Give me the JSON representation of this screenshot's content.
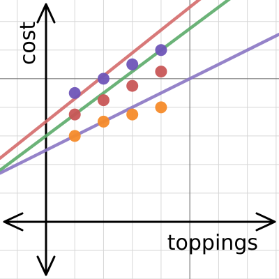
{
  "chart_data": {
    "type": "scatter",
    "xlabel": "toppings",
    "ylabel": "cost",
    "xlim": [
      -1.6,
      8.1
    ],
    "ylim": [
      -2.0,
      7.75
    ],
    "grid": true,
    "lines": [
      {
        "color": "#d46b6b",
        "intercept": 3.5,
        "slope": 0.8
      },
      {
        "color": "#5bab6a",
        "intercept": 3.0,
        "slope": 0.75
      },
      {
        "color": "#8a76c4",
        "intercept": 2.5,
        "slope": 0.5
      }
    ],
    "series": [
      {
        "color": "#6f55b8",
        "points": [
          [
            1,
            4.5
          ],
          [
            2,
            5.0
          ],
          [
            3,
            5.5
          ],
          [
            4,
            6.0
          ]
        ]
      },
      {
        "color": "#c85656",
        "points": [
          [
            1,
            3.75
          ],
          [
            2,
            4.25
          ],
          [
            3,
            4.75
          ],
          [
            4,
            5.25
          ]
        ]
      },
      {
        "color": "#f58b2a",
        "points": [
          [
            1,
            3.0
          ],
          [
            2,
            3.5
          ],
          [
            3,
            3.75
          ],
          [
            4,
            4.0
          ]
        ]
      }
    ]
  }
}
